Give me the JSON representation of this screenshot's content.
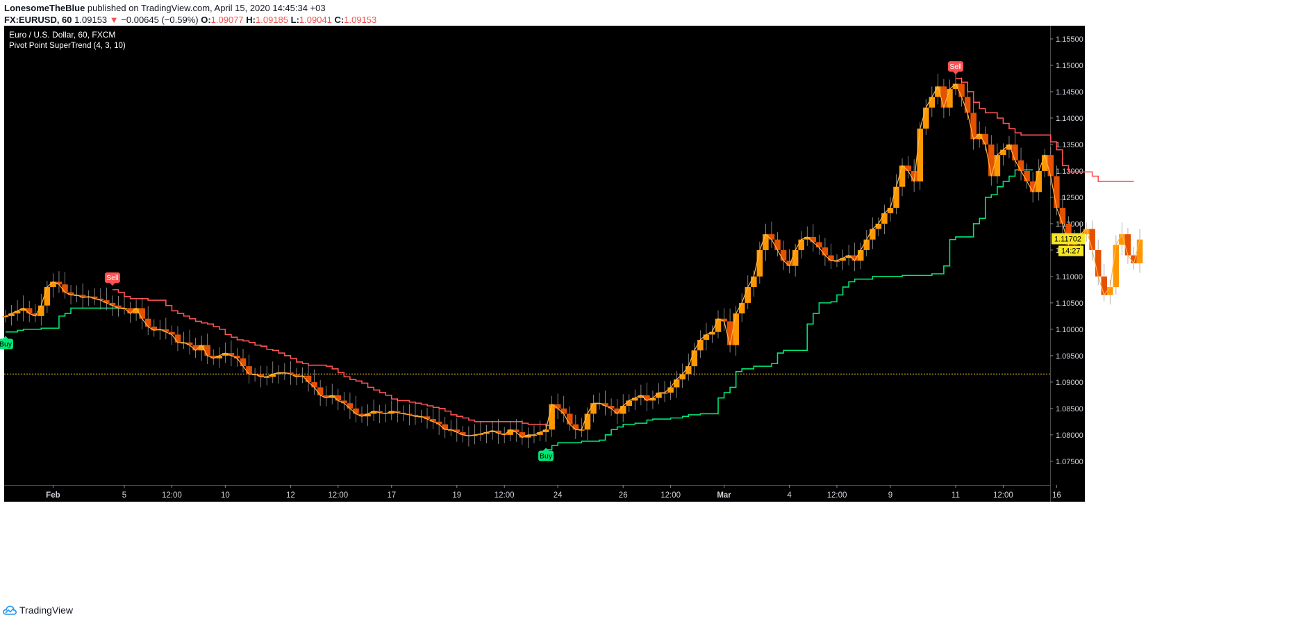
{
  "header": {
    "author": "LonesomeTheBlue",
    "published": "published on TradingView.com, April 15, 2020 14:45:34 +03",
    "symbol": "FX:EURUSD, 60",
    "last": "1.09153",
    "change_arrow": "▼",
    "change": "−0.00645 (−0.59%)",
    "o_label": "O:",
    "o": "1.09077",
    "h_label": "H:",
    "h": "1.09185",
    "l_label": "L:",
    "l": "1.09041",
    "c_label": "C:",
    "c": "1.09153"
  },
  "footer": {
    "brand": "TradingView"
  },
  "chart_data": {
    "type": "line",
    "title": "Euro / U.S. Dollar, 60, FXCM",
    "subtitle": "Pivot Point SuperTrend (4, 3, 10)",
    "background": "#000000",
    "ylim": [
      1.0705,
      1.1575
    ],
    "y_ticks": [
      "1.07500",
      "1.08000",
      "1.08500",
      "1.09000",
      "1.09500",
      "1.10000",
      "1.10500",
      "1.11000",
      "1.11500",
      "1.12000",
      "1.12500",
      "1.13000",
      "1.13500",
      "1.14000",
      "1.14500",
      "1.15000",
      "1.15500"
    ],
    "x_ticks": [
      {
        "label": "Feb",
        "i": 8,
        "bold": true
      },
      {
        "label": "5",
        "i": 20
      },
      {
        "label": "12:00",
        "i": 28
      },
      {
        "label": "10",
        "i": 37
      },
      {
        "label": "12",
        "i": 48
      },
      {
        "label": "12:00",
        "i": 56
      },
      {
        "label": "17",
        "i": 65
      },
      {
        "label": "19",
        "i": 76
      },
      {
        "label": "12:00",
        "i": 84
      },
      {
        "label": "24",
        "i": 93
      },
      {
        "label": "26",
        "i": 104
      },
      {
        "label": "12:00",
        "i": 112
      },
      {
        "label": "Mar",
        "i": 121,
        "bold": true
      },
      {
        "label": "4",
        "i": 132
      },
      {
        "label": "12:00",
        "i": 140
      },
      {
        "label": "9",
        "i": 149
      },
      {
        "label": "11",
        "i": 160
      },
      {
        "label": "12:00",
        "i": 168
      },
      {
        "label": "16",
        "i": 177
      }
    ],
    "price_line": 1.09153,
    "last_price_label": "1.11702",
    "last_price_value": 1.11702,
    "countdown_label": "14:27",
    "price_series": {
      "name": "EURUSD",
      "color": "#ff9800",
      "values": [
        1.1025,
        1.103,
        1.1035,
        1.104,
        1.103,
        1.1025,
        1.1045,
        1.108,
        1.109,
        1.1085,
        1.107,
        1.1065,
        1.1065,
        1.106,
        1.1062,
        1.1058,
        1.1055,
        1.105,
        1.1045,
        1.104,
        1.104,
        1.103,
        1.104,
        1.102,
        1.1005,
        1.0998,
        1.1,
        1.0995,
        1.099,
        1.0975,
        1.0975,
        1.097,
        1.096,
        1.097,
        1.095,
        1.0945,
        1.095,
        1.0955,
        1.095,
        1.0945,
        1.093,
        1.0915,
        1.0915,
        1.091,
        1.091,
        1.0915,
        1.0918,
        1.0918,
        1.0915,
        1.091,
        1.0912,
        1.09,
        1.089,
        1.0875,
        1.087,
        1.0875,
        1.0865,
        1.086,
        1.085,
        1.084,
        1.0835,
        1.084,
        1.0845,
        1.0842,
        1.084,
        1.0845,
        1.0842,
        1.084,
        1.0838,
        1.0835,
        1.0835,
        1.083,
        1.0825,
        1.082,
        1.081,
        1.081,
        1.0805,
        1.08,
        1.0798,
        1.08,
        1.0802,
        1.0805,
        1.0808,
        1.0803,
        1.08,
        1.081,
        1.0805,
        1.0795,
        1.08,
        1.08,
        1.0805,
        1.081,
        1.0858,
        1.085,
        1.084,
        1.082,
        1.081,
        1.081,
        1.084,
        1.086,
        1.086,
        1.0855,
        1.085,
        1.084,
        1.0855,
        1.0865,
        1.087,
        1.0875,
        1.0865,
        1.087,
        1.088,
        1.088,
        1.089,
        1.0905,
        1.0915,
        1.093,
        1.096,
        1.098,
        1.099,
        1.0995,
        1.102,
        1.1015,
        1.097,
        1.103,
        1.105,
        1.108,
        1.11,
        1.115,
        1.118,
        1.117,
        1.115,
        1.113,
        1.112,
        1.115,
        1.117,
        1.1175,
        1.1165,
        1.1155,
        1.114,
        1.113,
        1.113,
        1.1135,
        1.114,
        1.113,
        1.115,
        1.117,
        1.119,
        1.12,
        1.122,
        1.123,
        1.127,
        1.131,
        1.13,
        1.128,
        1.138,
        1.142,
        1.144,
        1.146,
        1.142,
        1.1455,
        1.1465,
        1.144,
        1.141,
        1.136,
        1.137,
        1.135,
        1.129,
        1.133,
        1.134,
        1.135,
        1.132,
        1.13,
        1.128,
        1.126,
        1.13,
        1.133,
        1.129,
        1.123,
        1.12,
        1.116,
        1.117,
        1.118,
        1.119,
        1.115,
        1.11,
        1.1065,
        1.108,
        1.116,
        1.118,
        1.114,
        1.1125,
        1.117
      ]
    },
    "supertrend_up": {
      "name": "SuperTrend Up",
      "color": "#00e676",
      "segments": [
        {
          "start": 0,
          "values": [
            1.0995,
            1.0995,
            1.0998,
            1.1,
            1.1,
            1.1,
            1.1002,
            1.1002,
            1.1002,
            1.1025,
            1.103,
            1.104,
            1.104,
            1.104,
            1.104,
            1.104,
            1.104,
            1.104,
            1.104,
            1.104
          ]
        },
        {
          "start": 91,
          "values": [
            1.0772,
            1.078,
            1.0785,
            1.0785,
            1.0785,
            1.0785,
            1.0788,
            1.0788,
            1.0788,
            1.079,
            1.08,
            1.081,
            1.0815,
            1.082,
            1.082,
            1.0822,
            1.0822,
            1.0828,
            1.083,
            1.083,
            1.083,
            1.0832,
            1.0832,
            1.0835,
            1.0838,
            1.0838,
            1.084,
            1.084,
            1.084,
            1.087,
            1.088,
            1.089,
            1.092,
            1.0925,
            1.0925,
            1.093,
            1.093,
            1.093,
            1.0935,
            1.0955,
            1.096,
            1.096,
            1.096,
            1.096,
            1.101,
            1.103,
            1.105,
            1.105,
            1.1052,
            1.1065,
            1.108,
            1.109,
            1.1095,
            1.1095,
            1.1095,
            1.11,
            1.11,
            1.11,
            1.11,
            1.11,
            1.1102,
            1.1102,
            1.1102,
            1.1102,
            1.1102,
            1.1105,
            1.1105,
            1.112,
            1.117,
            1.1175,
            1.1175,
            1.1175,
            1.12,
            1.121,
            1.125,
            1.1255,
            1.127,
            1.128,
            1.129,
            1.1302,
            1.1302,
            1.1302
          ]
        }
      ]
    },
    "supertrend_down": {
      "name": "SuperTrend Down",
      "color": "#ff5252",
      "segments": [
        {
          "start": 18,
          "values": [
            1.1075,
            1.107,
            1.1062,
            1.1058,
            1.1058,
            1.1058,
            1.1055,
            1.1055,
            1.1055,
            1.1045,
            1.1035,
            1.103,
            1.1025,
            1.102,
            1.1015,
            1.1012,
            1.101,
            1.1005,
            1.1,
            1.099,
            1.0985,
            1.098,
            1.0978,
            1.0975,
            1.097,
            1.0968,
            1.0962,
            1.096,
            1.0955,
            1.095,
            1.0945,
            1.0938,
            1.0935,
            1.0932,
            1.0932,
            1.0932,
            1.093,
            1.0925,
            1.0918,
            1.091,
            1.0905,
            1.0902,
            1.0898,
            1.089,
            1.0885,
            1.088,
            1.0875,
            1.0868,
            1.0865,
            1.0865,
            1.0862,
            1.086,
            1.0858,
            1.0855,
            1.0852,
            1.085,
            1.0845,
            1.0838,
            1.0835,
            1.0832,
            1.0828,
            1.0825,
            1.0825,
            1.0825,
            1.0825,
            1.0825,
            1.0825,
            1.0825,
            1.0825,
            1.0822,
            1.082,
            1.082,
            1.082,
            1.0818
          ]
        },
        {
          "start": 160,
          "values": [
            1.1475,
            1.1468,
            1.145,
            1.143,
            1.1418,
            1.141,
            1.141,
            1.14,
            1.139,
            1.138,
            1.1372,
            1.1368,
            1.1368,
            1.1368,
            1.1368,
            1.1368,
            1.1355,
            1.134,
            1.131,
            1.1298,
            1.1298,
            1.1298,
            1.1298,
            1.129,
            1.128,
            1.128,
            1.128,
            1.128,
            1.128,
            1.128
          ]
        }
      ]
    },
    "signals": [
      {
        "label": "Buy",
        "i": 0,
        "type": "buy",
        "price": 1.099
      },
      {
        "label": "Sell",
        "i": 18,
        "type": "sell",
        "price": 1.108
      },
      {
        "label": "Buy",
        "i": 91,
        "type": "buy",
        "price": 1.0778
      },
      {
        "label": "Sell",
        "i": 160,
        "type": "sell",
        "price": 1.148
      }
    ]
  }
}
